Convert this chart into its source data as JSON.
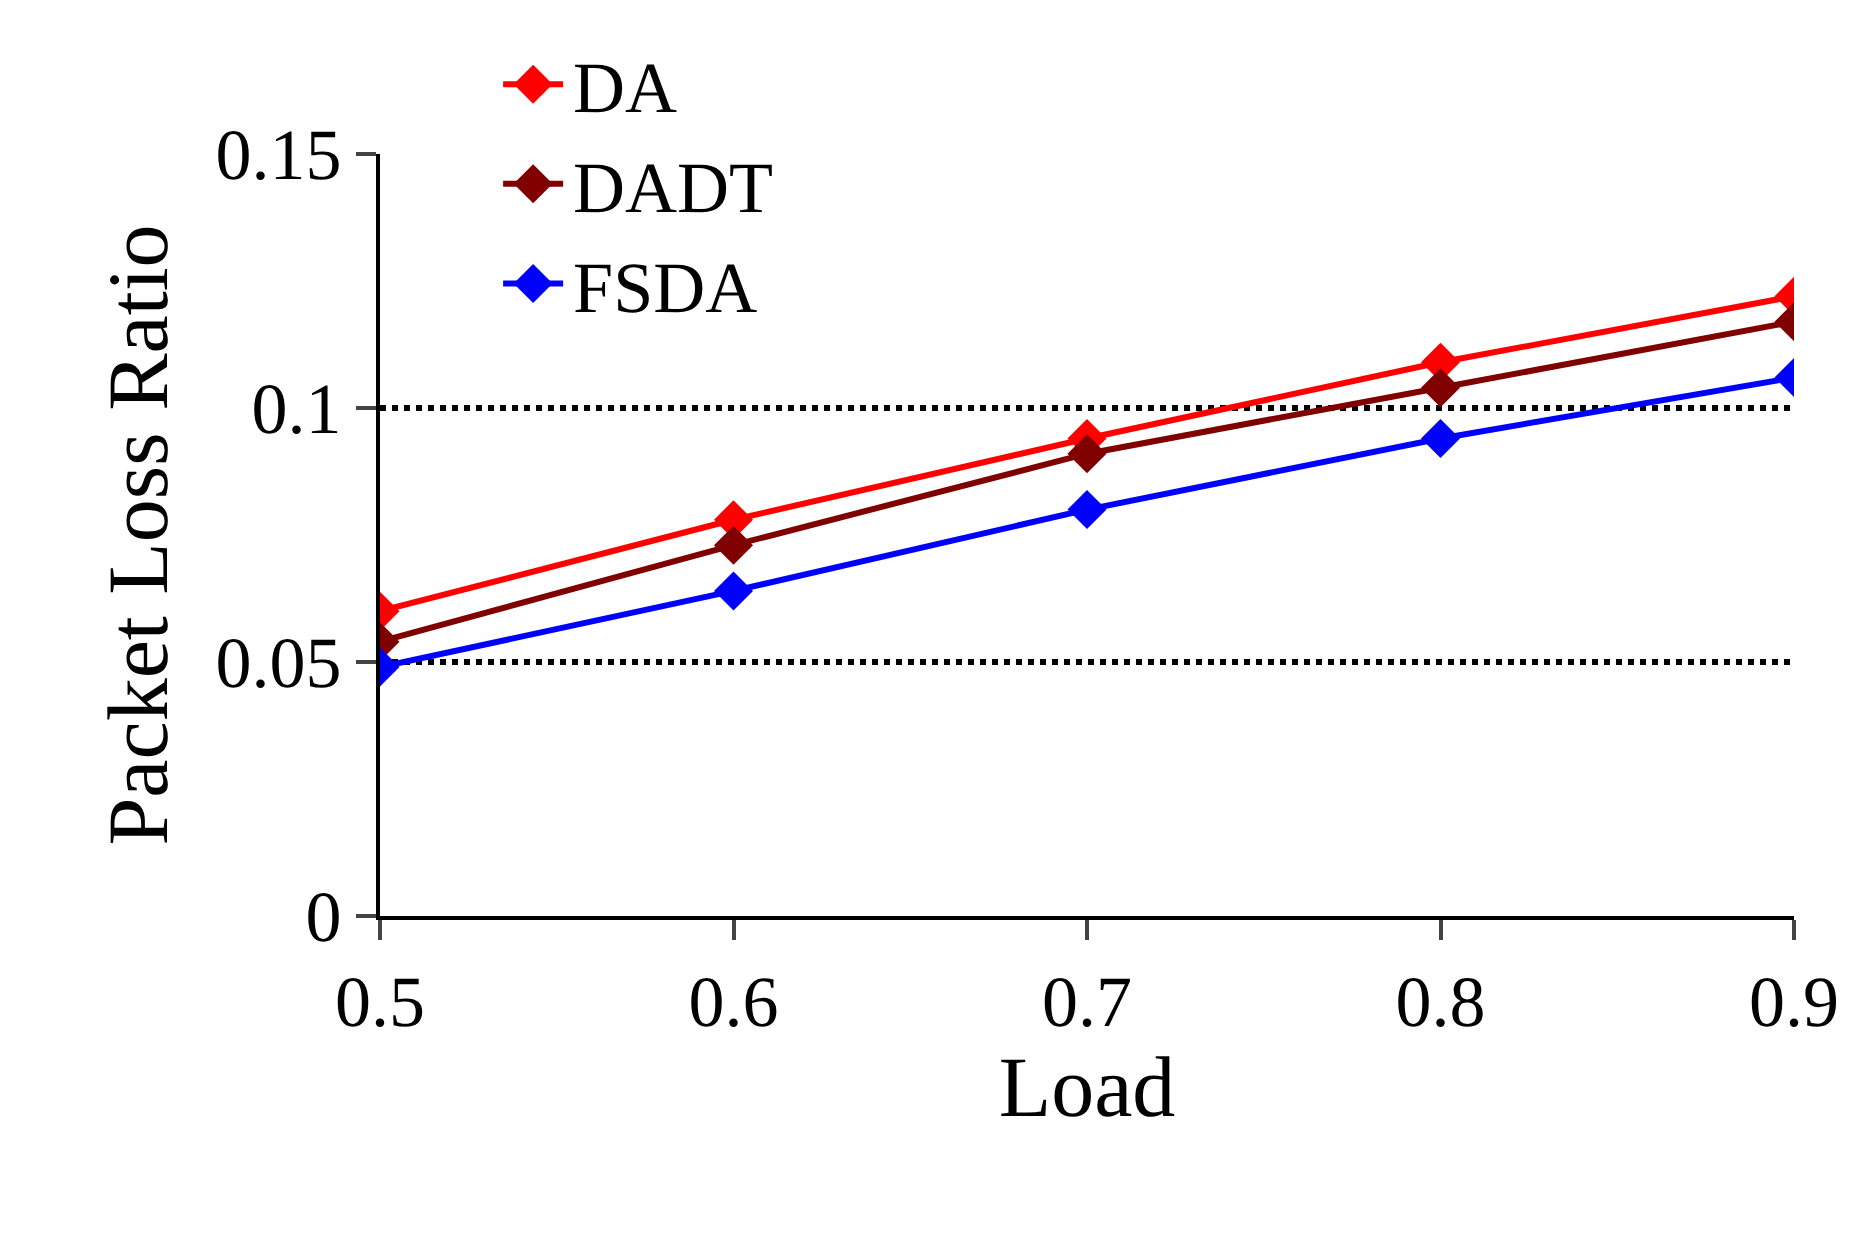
{
  "chart_data": {
    "type": "line",
    "xlabel": "Load",
    "ylabel": "Packet Loss Ratio",
    "x": [
      0.5,
      0.6,
      0.7,
      0.8,
      0.9
    ],
    "series": [
      {
        "name": "DA",
        "color": "#ff0000",
        "values": [
          0.06,
          0.078,
          0.094,
          0.109,
          0.122
        ]
      },
      {
        "name": "DADT",
        "color": "#800000",
        "values": [
          0.054,
          0.073,
          0.091,
          0.104,
          0.117
        ]
      },
      {
        "name": "FSDA",
        "color": "#0000ff",
        "values": [
          0.049,
          0.064,
          0.08,
          0.094,
          0.106
        ]
      }
    ],
    "xlim": [
      0.5,
      0.9
    ],
    "xticks": [
      0.5,
      0.6,
      0.7,
      0.8,
      0.9
    ],
    "ylim": [
      0,
      0.15
    ],
    "yticks": [
      0,
      0.05,
      0.1,
      0.15
    ],
    "grid": "y",
    "legend": "top left",
    "marker": "diamond",
    "line_style": "solid"
  }
}
